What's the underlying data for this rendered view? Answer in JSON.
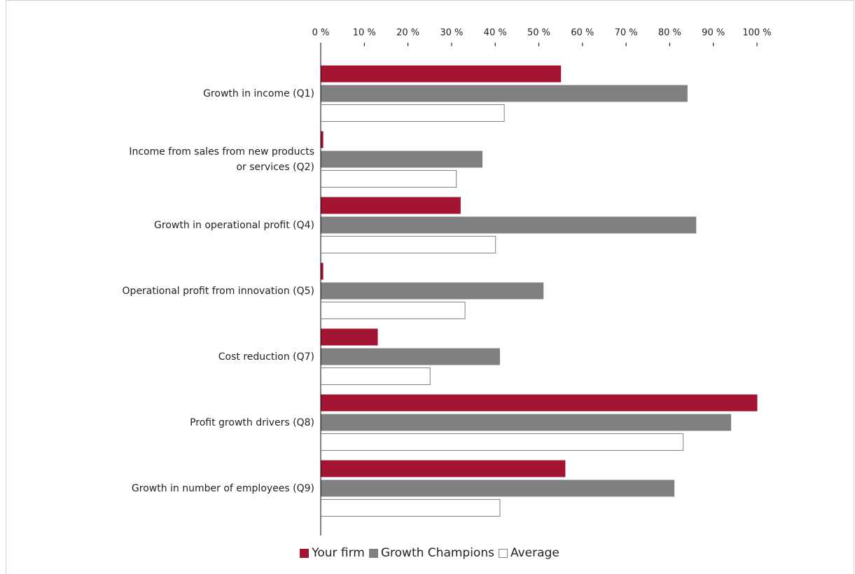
{
  "chart_data": {
    "type": "hbar",
    "categories": [
      "Growth in income (Q1)",
      "Income from sales from new products\nor services (Q2)",
      "Growth in operational profit (Q4)",
      "Operational profit from innovation (Q5)",
      "Cost reduction (Q7)",
      "Profit growth drivers (Q8)",
      "Growth in number of employees (Q9)"
    ],
    "series": [
      {
        "name": "Your firm",
        "color": "#a31432",
        "values": [
          55,
          0.5,
          32,
          0.5,
          13,
          100,
          56
        ]
      },
      {
        "name": "Growth Champions",
        "color": "#808080",
        "values": [
          84,
          37,
          86,
          51,
          41,
          94,
          81
        ]
      },
      {
        "name": "Average",
        "color": "#ffffff",
        "values": [
          42,
          31,
          40,
          33,
          25,
          83,
          41
        ]
      }
    ],
    "xlim": [
      0,
      100
    ],
    "xticks": [
      {
        "value": 0,
        "label": "0 %"
      },
      {
        "value": 10,
        "label": "10 %"
      },
      {
        "value": 20,
        "label": "20 %"
      },
      {
        "value": 30,
        "label": "30 %"
      },
      {
        "value": 40,
        "label": "40 %"
      },
      {
        "value": 50,
        "label": "50 %"
      },
      {
        "value": 60,
        "label": "60 %"
      },
      {
        "value": 70,
        "label": "70 %"
      },
      {
        "value": 80,
        "label": "80 %"
      },
      {
        "value": 90,
        "label": "90 %"
      },
      {
        "value": 100,
        "label": "100 %"
      }
    ],
    "legend": "bottom"
  }
}
